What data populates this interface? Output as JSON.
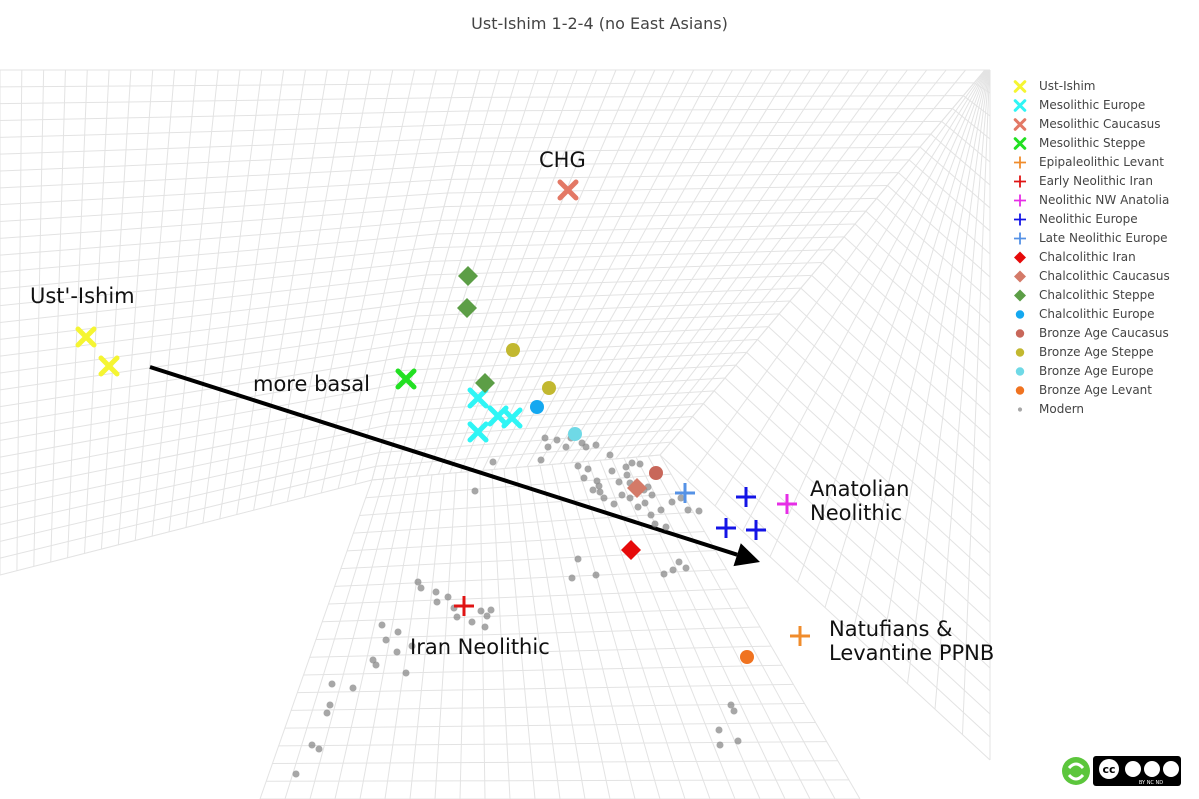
{
  "title": "Ust-Ishim 1-2-4 (no East Asians)",
  "annotations": [
    {
      "key": "ust",
      "text": "Ust'-Ishim"
    },
    {
      "key": "chg",
      "text": "CHG"
    },
    {
      "key": "basal",
      "text": "more basal"
    },
    {
      "key": "anat",
      "text": "Anatolian\nNeolithic"
    },
    {
      "key": "iran",
      "text": "Iran Neolithic"
    },
    {
      "key": "natu",
      "text": "Natufians &\nLevantine PPNB"
    }
  ],
  "legend": [
    {
      "label": "Ust-Ishim",
      "symbol": "x",
      "color": "#f5f532"
    },
    {
      "label": "Mesolithic Europe",
      "symbol": "x",
      "color": "#2ff5f5"
    },
    {
      "label": "Mesolithic Caucasus",
      "symbol": "x",
      "color": "#e37865"
    },
    {
      "label": "Mesolithic Steppe",
      "symbol": "x",
      "color": "#22e022"
    },
    {
      "label": "Epipaleolithic Levant",
      "symbol": "cross",
      "color": "#f08c2c"
    },
    {
      "label": "Early Neolithic Iran",
      "symbol": "cross",
      "color": "#e01414"
    },
    {
      "label": "Neolithic NW Anatolia",
      "symbol": "cross",
      "color": "#e62ee6"
    },
    {
      "label": "Neolithic Europe",
      "symbol": "cross",
      "color": "#1414e6"
    },
    {
      "label": "Late Neolithic Europe",
      "symbol": "cross",
      "color": "#5592e6"
    },
    {
      "label": "Chalcolithic Iran",
      "symbol": "diamond",
      "color": "#e60a0a"
    },
    {
      "label": "Chalcolithic Caucasus",
      "symbol": "diamond",
      "color": "#d47a68"
    },
    {
      "label": "Chalcolithic Steppe",
      "symbol": "diamond",
      "color": "#5c9e46"
    },
    {
      "label": "Chalcolithic Europe",
      "symbol": "circle",
      "color": "#14a8f0"
    },
    {
      "label": "Bronze Age Caucasus",
      "symbol": "circle",
      "color": "#c8675a"
    },
    {
      "label": "Bronze Age Steppe",
      "symbol": "circle",
      "color": "#c2b830"
    },
    {
      "label": "Bronze Age Europe",
      "symbol": "circle",
      "color": "#6fd9e6"
    },
    {
      "label": "Bronze Age Levant",
      "symbol": "circle",
      "color": "#f07320"
    },
    {
      "label": "Modern",
      "symbol": "dot",
      "color": "#8a8a8a"
    }
  ],
  "chart_data": {
    "type": "scatter",
    "projection": "3d",
    "title": "Ust-Ishim 1-2-4 (no East Asians)",
    "xlabel": "",
    "ylabel": "",
    "zlabel": "",
    "grid": true,
    "legend_position": "top-right",
    "series": [
      {
        "name": "Ust-Ishim",
        "symbol": "x",
        "color": "#f5f532",
        "points": [
          [
            86,
            337
          ],
          [
            109,
            366
          ]
        ]
      },
      {
        "name": "Mesolithic Europe",
        "symbol": "x",
        "color": "#2ff5f5",
        "points": [
          [
            478,
            398
          ],
          [
            498,
            416
          ],
          [
            512,
            418
          ],
          [
            478,
            432
          ]
        ]
      },
      {
        "name": "Mesolithic Caucasus",
        "symbol": "x",
        "color": "#e37865",
        "points": [
          [
            568,
            190
          ]
        ]
      },
      {
        "name": "Mesolithic Steppe",
        "symbol": "x",
        "color": "#22e022",
        "points": [
          [
            406,
            379
          ]
        ]
      },
      {
        "name": "Epipaleolithic Levant",
        "symbol": "cross",
        "color": "#f08c2c",
        "points": [
          [
            800,
            636
          ]
        ]
      },
      {
        "name": "Early Neolithic Iran",
        "symbol": "cross",
        "color": "#e01414",
        "points": [
          [
            464,
            606
          ]
        ]
      },
      {
        "name": "Neolithic NW Anatolia",
        "symbol": "cross",
        "color": "#e62ee6",
        "points": [
          [
            787,
            504
          ]
        ]
      },
      {
        "name": "Neolithic Europe",
        "symbol": "cross",
        "color": "#1414e6",
        "points": [
          [
            746,
            497
          ],
          [
            726,
            528
          ],
          [
            756,
            530
          ]
        ]
      },
      {
        "name": "Late Neolithic Europe",
        "symbol": "cross",
        "color": "#5592e6",
        "points": [
          [
            685,
            493
          ]
        ]
      },
      {
        "name": "Chalcolithic Iran",
        "symbol": "diamond",
        "color": "#e60a0a",
        "points": [
          [
            631,
            550
          ]
        ]
      },
      {
        "name": "Chalcolithic Caucasus",
        "symbol": "diamond",
        "color": "#d47a68",
        "points": [
          [
            637,
            488
          ]
        ]
      },
      {
        "name": "Chalcolithic Steppe",
        "symbol": "diamond",
        "color": "#5c9e46",
        "points": [
          [
            468,
            276
          ],
          [
            467,
            308
          ],
          [
            485,
            383
          ]
        ]
      },
      {
        "name": "Chalcolithic Europe",
        "symbol": "circle",
        "color": "#14a8f0",
        "points": [
          [
            537,
            407
          ]
        ]
      },
      {
        "name": "Bronze Age Caucasus",
        "symbol": "circle",
        "color": "#c8675a",
        "points": [
          [
            656,
            473
          ]
        ]
      },
      {
        "name": "Bronze Age Steppe",
        "symbol": "circle",
        "color": "#c2b830",
        "points": [
          [
            513,
            350
          ],
          [
            549,
            388
          ]
        ]
      },
      {
        "name": "Bronze Age Europe",
        "symbol": "circle",
        "color": "#6fd9e6",
        "points": [
          [
            575,
            434
          ]
        ]
      },
      {
        "name": "Bronze Age Levant",
        "symbol": "circle",
        "color": "#f07320",
        "points": [
          [
            747,
            657
          ]
        ]
      },
      {
        "name": "Modern",
        "symbol": "dot",
        "color": "#8a8a8a",
        "points": [
          [
            493,
            462
          ],
          [
            475,
            491
          ],
          [
            545,
            438
          ],
          [
            548,
            447
          ],
          [
            557,
            440
          ],
          [
            541,
            460
          ],
          [
            566,
            447
          ],
          [
            582,
            443
          ],
          [
            571,
            438
          ],
          [
            578,
            466
          ],
          [
            584,
            478
          ],
          [
            588,
            469
          ],
          [
            593,
            490
          ],
          [
            599,
            486
          ],
          [
            604,
            498
          ],
          [
            612,
            471
          ],
          [
            619,
            482
          ],
          [
            610,
            455
          ],
          [
            626,
            467
          ],
          [
            632,
            463
          ],
          [
            640,
            464
          ],
          [
            614,
            504
          ],
          [
            622,
            495
          ],
          [
            630,
            498
          ],
          [
            638,
            507
          ],
          [
            645,
            503
          ],
          [
            651,
            515
          ],
          [
            661,
            510
          ],
          [
            655,
            524
          ],
          [
            666,
            527
          ],
          [
            672,
            502
          ],
          [
            681,
            498
          ],
          [
            688,
            510
          ],
          [
            699,
            511
          ],
          [
            652,
            495
          ],
          [
            644,
            490
          ],
          [
            627,
            475
          ],
          [
            600,
            492
          ],
          [
            586,
            447
          ],
          [
            597,
            481
          ],
          [
            648,
            487
          ],
          [
            679,
            562
          ],
          [
            686,
            568
          ],
          [
            664,
            574
          ],
          [
            673,
            570
          ],
          [
            578,
            559
          ],
          [
            572,
            578
          ],
          [
            596,
            575
          ],
          [
            418,
            582
          ],
          [
            421,
            588
          ],
          [
            436,
            592
          ],
          [
            437,
            602
          ],
          [
            448,
            597
          ],
          [
            454,
            608
          ],
          [
            472,
            622
          ],
          [
            481,
            611
          ],
          [
            487,
            616
          ],
          [
            457,
            617
          ],
          [
            382,
            625
          ],
          [
            398,
            632
          ],
          [
            386,
            640
          ],
          [
            397,
            652
          ],
          [
            412,
            646
          ],
          [
            376,
            665
          ],
          [
            373,
            660
          ],
          [
            406,
            673
          ],
          [
            332,
            684
          ],
          [
            353,
            688
          ],
          [
            330,
            705
          ],
          [
            327,
            713
          ],
          [
            312,
            745
          ],
          [
            319,
            749
          ],
          [
            296,
            774
          ],
          [
            731,
            705
          ],
          [
            734,
            711
          ],
          [
            719,
            730
          ],
          [
            720,
            745
          ],
          [
            738,
            741
          ],
          [
            491,
            610
          ],
          [
            485,
            627
          ],
          [
            596,
            445
          ],
          [
            630,
            483
          ]
        ]
      }
    ]
  },
  "arrow": {
    "from": [
      150,
      367
    ],
    "to": [
      760,
      562
    ],
    "label": "more basal"
  },
  "license_badge": {
    "text_top": "cc",
    "text_bottom": "BY   NC   ND"
  }
}
